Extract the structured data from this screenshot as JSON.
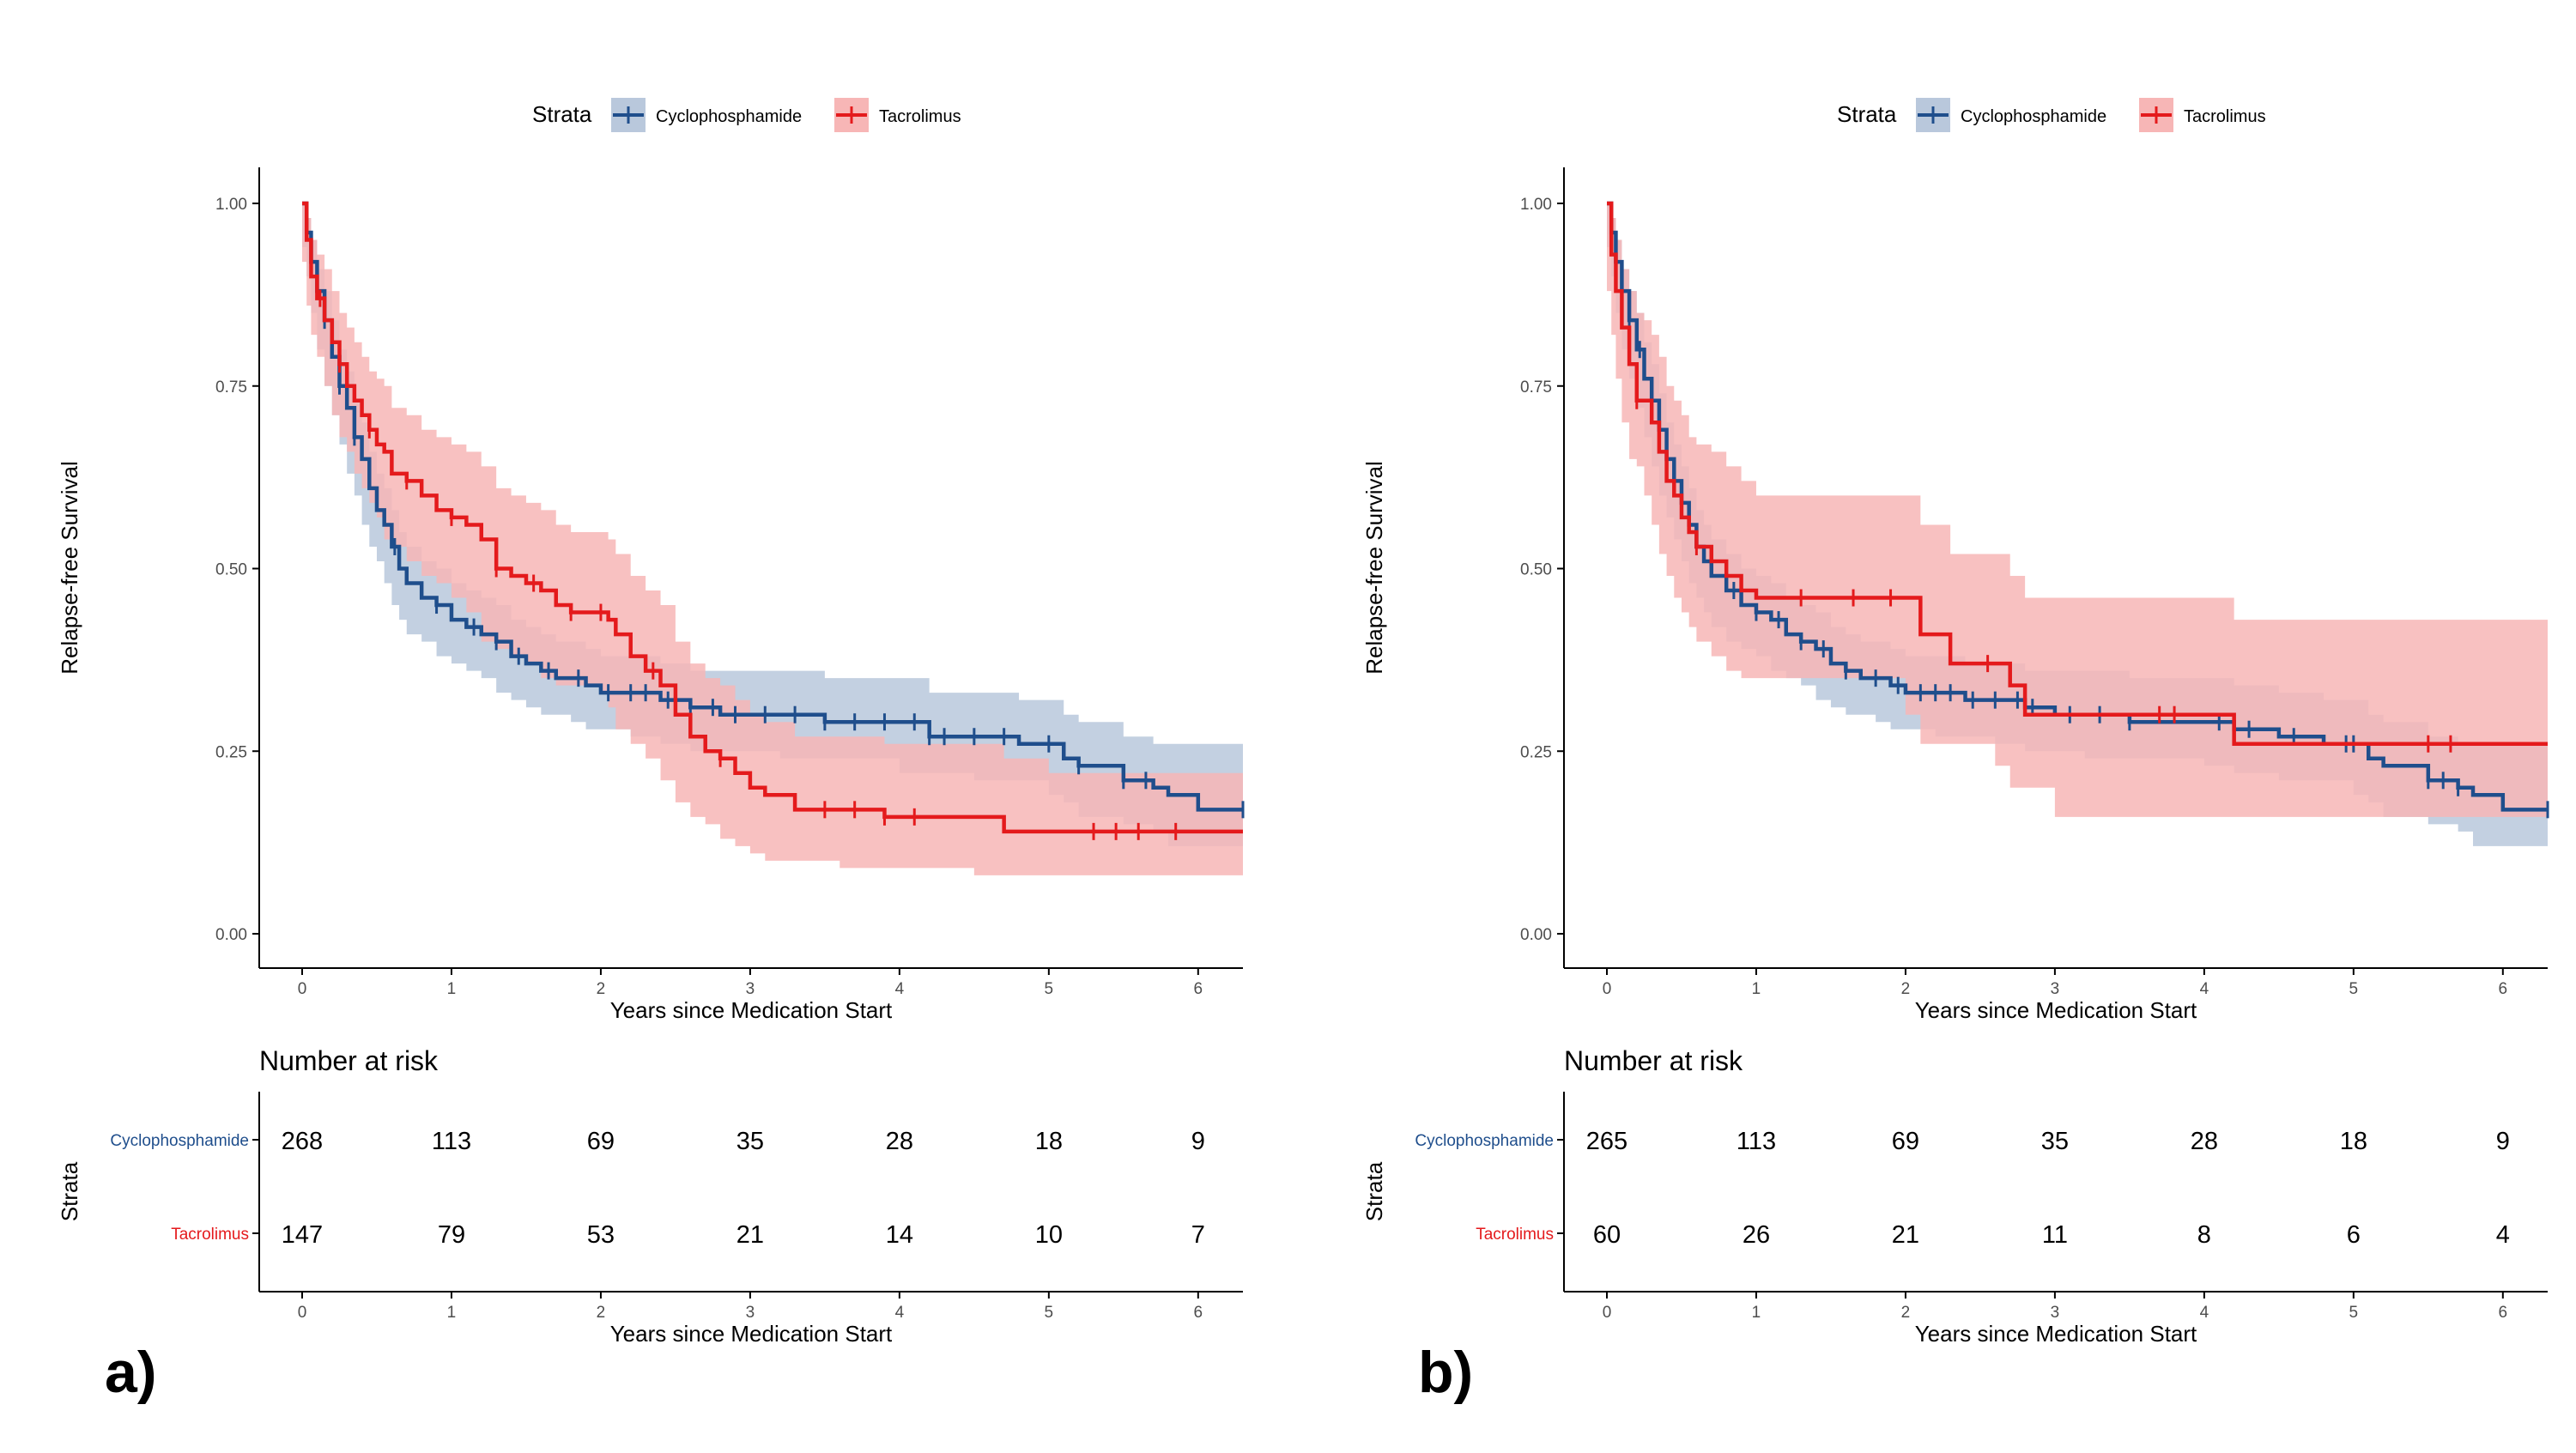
{
  "colors": {
    "cyclophosphamide": "#1F4E8C",
    "tacrolimus": "#E41A1C",
    "cyclophosphamide_band": "#B9C8DC",
    "tacrolimus_band": "#F7B6B6",
    "axis": "#000000",
    "tick_text": "#4D4D4D"
  },
  "chart_data": [
    {
      "type": "line",
      "subtype": "kaplan-meier",
      "panel_label": "a)",
      "legend": {
        "title": "Strata",
        "position": "top",
        "entries": [
          "Cyclophosphamide",
          "Tacrolimus"
        ]
      },
      "xlabel": "Years since Medication Start",
      "ylabel": "Relapse-free Survival",
      "xlim": [
        0,
        6.3
      ],
      "ylim": [
        0,
        1
      ],
      "xticks": [
        "0",
        "1",
        "2",
        "3",
        "4",
        "5",
        "6"
      ],
      "yticks": [
        "0.00",
        "0.25",
        "0.50",
        "0.75",
        "1.00"
      ],
      "grid": false,
      "series": [
        {
          "name": "Cyclophosphamide",
          "color_key": "cyclophosphamide",
          "band_key": "cyclophosphamide_band",
          "x": [
            0,
            0.03,
            0.06,
            0.1,
            0.15,
            0.2,
            0.25,
            0.3,
            0.35,
            0.4,
            0.45,
            0.5,
            0.55,
            0.6,
            0.65,
            0.7,
            0.8,
            0.9,
            1.0,
            1.1,
            1.2,
            1.3,
            1.4,
            1.5,
            1.6,
            1.7,
            1.8,
            1.9,
            2.0,
            2.2,
            2.4,
            2.6,
            2.8,
            3.0,
            3.2,
            3.5,
            3.8,
            4.0,
            4.2,
            4.5,
            4.8,
            5.0,
            5.1,
            5.2,
            5.5,
            5.7,
            5.8,
            6.0,
            6.3
          ],
          "y": [
            1.0,
            0.96,
            0.92,
            0.88,
            0.84,
            0.79,
            0.75,
            0.72,
            0.68,
            0.65,
            0.61,
            0.58,
            0.56,
            0.53,
            0.5,
            0.48,
            0.46,
            0.45,
            0.43,
            0.42,
            0.41,
            0.4,
            0.38,
            0.37,
            0.36,
            0.35,
            0.35,
            0.34,
            0.33,
            0.33,
            0.32,
            0.31,
            0.3,
            0.3,
            0.3,
            0.29,
            0.29,
            0.29,
            0.27,
            0.27,
            0.26,
            0.26,
            0.24,
            0.23,
            0.21,
            0.2,
            0.19,
            0.17,
            0.17
          ],
          "ci_lower": [
            1.0,
            0.94,
            0.9,
            0.85,
            0.8,
            0.75,
            0.71,
            0.67,
            0.63,
            0.6,
            0.56,
            0.53,
            0.51,
            0.48,
            0.45,
            0.43,
            0.41,
            0.4,
            0.38,
            0.37,
            0.36,
            0.35,
            0.33,
            0.32,
            0.31,
            0.3,
            0.3,
            0.29,
            0.28,
            0.28,
            0.27,
            0.26,
            0.25,
            0.25,
            0.25,
            0.24,
            0.24,
            0.24,
            0.22,
            0.22,
            0.21,
            0.21,
            0.19,
            0.18,
            0.16,
            0.15,
            0.14,
            0.12,
            0.12
          ],
          "ci_upper": [
            1.0,
            0.98,
            0.95,
            0.91,
            0.88,
            0.84,
            0.8,
            0.77,
            0.73,
            0.7,
            0.66,
            0.63,
            0.61,
            0.58,
            0.55,
            0.53,
            0.51,
            0.5,
            0.48,
            0.47,
            0.46,
            0.45,
            0.43,
            0.42,
            0.41,
            0.4,
            0.4,
            0.39,
            0.38,
            0.38,
            0.37,
            0.36,
            0.36,
            0.36,
            0.36,
            0.35,
            0.35,
            0.35,
            0.33,
            0.33,
            0.32,
            0.32,
            0.3,
            0.29,
            0.27,
            0.26,
            0.26,
            0.26,
            0.26
          ],
          "censor_x": [
            0.15,
            0.25,
            0.35,
            0.62,
            0.9,
            1.15,
            1.3,
            1.45,
            1.65,
            1.85,
            2.05,
            2.2,
            2.3,
            2.45,
            2.6,
            2.75,
            2.9,
            3.1,
            3.3,
            3.5,
            3.7,
            3.9,
            4.1,
            4.2,
            4.3,
            4.5,
            4.7,
            5.0,
            5.2,
            5.5,
            5.65,
            6.3
          ]
        },
        {
          "name": "Tacrolimus",
          "color_key": "tacrolimus",
          "band_key": "tacrolimus_band",
          "x": [
            0,
            0.03,
            0.06,
            0.1,
            0.15,
            0.2,
            0.25,
            0.3,
            0.35,
            0.4,
            0.45,
            0.5,
            0.55,
            0.6,
            0.7,
            0.8,
            0.9,
            1.0,
            1.1,
            1.2,
            1.3,
            1.4,
            1.5,
            1.6,
            1.7,
            1.8,
            1.9,
            2.0,
            2.05,
            2.1,
            2.2,
            2.3,
            2.4,
            2.5,
            2.6,
            2.7,
            2.8,
            2.9,
            3.0,
            3.1,
            3.3,
            3.6,
            3.9,
            4.2,
            4.5,
            4.7,
            5.0,
            5.4,
            5.8,
            6.3
          ],
          "y": [
            1.0,
            0.95,
            0.9,
            0.87,
            0.84,
            0.81,
            0.78,
            0.75,
            0.73,
            0.71,
            0.69,
            0.67,
            0.66,
            0.63,
            0.62,
            0.6,
            0.58,
            0.57,
            0.56,
            0.54,
            0.5,
            0.49,
            0.48,
            0.47,
            0.45,
            0.44,
            0.44,
            0.44,
            0.43,
            0.41,
            0.38,
            0.36,
            0.34,
            0.3,
            0.27,
            0.25,
            0.24,
            0.22,
            0.2,
            0.19,
            0.17,
            0.17,
            0.16,
            0.16,
            0.16,
            0.14,
            0.14,
            0.14,
            0.14,
            0.14
          ],
          "ci_lower": [
            1.0,
            0.92,
            0.86,
            0.82,
            0.79,
            0.75,
            0.71,
            0.68,
            0.66,
            0.63,
            0.61,
            0.59,
            0.57,
            0.54,
            0.53,
            0.51,
            0.49,
            0.48,
            0.46,
            0.44,
            0.4,
            0.39,
            0.38,
            0.37,
            0.35,
            0.34,
            0.34,
            0.34,
            0.33,
            0.31,
            0.28,
            0.26,
            0.24,
            0.21,
            0.18,
            0.16,
            0.15,
            0.13,
            0.12,
            0.11,
            0.1,
            0.1,
            0.09,
            0.09,
            0.09,
            0.08,
            0.08,
            0.08,
            0.08,
            0.08
          ],
          "ci_upper": [
            1.0,
            0.98,
            0.95,
            0.93,
            0.91,
            0.88,
            0.85,
            0.83,
            0.81,
            0.79,
            0.77,
            0.76,
            0.75,
            0.72,
            0.71,
            0.69,
            0.68,
            0.67,
            0.66,
            0.64,
            0.61,
            0.6,
            0.59,
            0.58,
            0.56,
            0.55,
            0.55,
            0.55,
            0.54,
            0.52,
            0.49,
            0.47,
            0.45,
            0.4,
            0.37,
            0.35,
            0.34,
            0.32,
            0.3,
            0.29,
            0.27,
            0.27,
            0.26,
            0.26,
            0.26,
            0.24,
            0.22,
            0.22,
            0.22,
            0.22
          ],
          "censor_x": [
            0.12,
            0.25,
            0.45,
            0.7,
            1.0,
            1.3,
            1.55,
            1.8,
            2.0,
            2.35,
            2.8,
            3.5,
            3.7,
            3.9,
            4.1,
            5.3,
            5.45,
            5.6,
            5.85
          ]
        }
      ],
      "risk_table": {
        "title": "Number at risk",
        "ylabel": "Strata",
        "xlabel": "Years since Medication Start",
        "times": [
          0,
          1,
          2,
          3,
          4,
          5,
          6
        ],
        "xticks": [
          "0",
          "1",
          "2",
          "3",
          "4",
          "5",
          "6"
        ],
        "rows": [
          {
            "name": "Cyclophosphamide",
            "color_key": "cyclophosphamide",
            "values": [
              "268",
              "113",
              "69",
              "35",
              "28",
              "18",
              "9"
            ]
          },
          {
            "name": "Tacrolimus",
            "color_key": "tacrolimus",
            "values": [
              "147",
              "79",
              "53",
              "21",
              "14",
              "10",
              "7"
            ]
          }
        ]
      }
    },
    {
      "type": "line",
      "subtype": "kaplan-meier",
      "panel_label": "b)",
      "legend": {
        "title": "Strata",
        "position": "top",
        "entries": [
          "Cyclophosphamide",
          "Tacrolimus"
        ]
      },
      "xlabel": "Years since Medication Start",
      "ylabel": "Relapse-free Survival",
      "xlim": [
        0,
        6.3
      ],
      "ylim": [
        0,
        1
      ],
      "xticks": [
        "0",
        "1",
        "2",
        "3",
        "4",
        "5",
        "6"
      ],
      "yticks": [
        "0.00",
        "0.25",
        "0.50",
        "0.75",
        "1.00"
      ],
      "grid": false,
      "series": [
        {
          "name": "Cyclophosphamide",
          "color_key": "cyclophosphamide",
          "band_key": "cyclophosphamide_band",
          "x": [
            0,
            0.03,
            0.06,
            0.1,
            0.15,
            0.2,
            0.25,
            0.3,
            0.35,
            0.4,
            0.45,
            0.5,
            0.55,
            0.6,
            0.65,
            0.7,
            0.8,
            0.9,
            1.0,
            1.1,
            1.2,
            1.3,
            1.4,
            1.5,
            1.6,
            1.7,
            1.8,
            1.9,
            2.0,
            2.2,
            2.4,
            2.6,
            2.8,
            3.0,
            3.2,
            3.5,
            3.8,
            4.0,
            4.2,
            4.5,
            4.8,
            5.0,
            5.1,
            5.2,
            5.5,
            5.7,
            5.8,
            6.0,
            6.3
          ],
          "y": [
            1.0,
            0.96,
            0.92,
            0.88,
            0.84,
            0.8,
            0.76,
            0.73,
            0.69,
            0.65,
            0.62,
            0.59,
            0.56,
            0.53,
            0.51,
            0.49,
            0.47,
            0.45,
            0.44,
            0.43,
            0.41,
            0.4,
            0.39,
            0.37,
            0.36,
            0.35,
            0.35,
            0.34,
            0.33,
            0.33,
            0.32,
            0.32,
            0.31,
            0.3,
            0.3,
            0.29,
            0.29,
            0.29,
            0.28,
            0.27,
            0.26,
            0.26,
            0.24,
            0.23,
            0.21,
            0.2,
            0.19,
            0.17,
            0.17
          ],
          "ci_lower": [
            1.0,
            0.94,
            0.9,
            0.85,
            0.8,
            0.76,
            0.72,
            0.68,
            0.64,
            0.6,
            0.57,
            0.54,
            0.51,
            0.48,
            0.46,
            0.44,
            0.42,
            0.4,
            0.39,
            0.38,
            0.36,
            0.35,
            0.34,
            0.32,
            0.31,
            0.3,
            0.3,
            0.29,
            0.28,
            0.28,
            0.27,
            0.27,
            0.26,
            0.25,
            0.25,
            0.24,
            0.24,
            0.24,
            0.23,
            0.22,
            0.21,
            0.21,
            0.19,
            0.18,
            0.16,
            0.15,
            0.14,
            0.12,
            0.12
          ],
          "ci_upper": [
            1.0,
            0.98,
            0.95,
            0.91,
            0.88,
            0.85,
            0.81,
            0.78,
            0.74,
            0.7,
            0.67,
            0.64,
            0.61,
            0.58,
            0.56,
            0.54,
            0.52,
            0.5,
            0.49,
            0.48,
            0.46,
            0.45,
            0.44,
            0.42,
            0.41,
            0.4,
            0.4,
            0.39,
            0.38,
            0.38,
            0.37,
            0.37,
            0.36,
            0.36,
            0.36,
            0.35,
            0.35,
            0.35,
            0.34,
            0.33,
            0.32,
            0.32,
            0.3,
            0.29,
            0.27,
            0.26,
            0.26,
            0.26,
            0.26
          ],
          "censor_x": [
            0.15,
            0.22,
            0.3,
            0.4,
            0.55,
            0.85,
            1.0,
            1.15,
            1.3,
            1.45,
            1.6,
            1.8,
            1.95,
            2.1,
            2.2,
            2.3,
            2.45,
            2.6,
            2.75,
            2.85,
            3.1,
            3.3,
            3.5,
            4.1,
            4.2,
            4.3,
            4.6,
            4.95,
            5.0,
            5.5,
            5.6,
            5.7,
            6.3
          ]
        },
        {
          "name": "Tacrolimus",
          "color_key": "tacrolimus",
          "band_key": "tacrolimus_band",
          "x": [
            0,
            0.03,
            0.06,
            0.1,
            0.15,
            0.2,
            0.25,
            0.3,
            0.35,
            0.4,
            0.45,
            0.5,
            0.55,
            0.6,
            0.7,
            0.8,
            0.9,
            1.0,
            1.1,
            1.2,
            1.3,
            2.0,
            2.1,
            2.3,
            2.5,
            2.6,
            2.7,
            2.8,
            3.0,
            4.2,
            6.3
          ],
          "y": [
            1.0,
            0.93,
            0.88,
            0.83,
            0.78,
            0.73,
            0.73,
            0.7,
            0.66,
            0.62,
            0.6,
            0.57,
            0.55,
            0.53,
            0.51,
            0.49,
            0.47,
            0.46,
            0.46,
            0.46,
            0.46,
            0.46,
            0.41,
            0.37,
            0.37,
            0.37,
            0.34,
            0.3,
            0.3,
            0.26,
            0.26
          ],
          "ci_lower": [
            1.0,
            0.88,
            0.82,
            0.76,
            0.7,
            0.65,
            0.64,
            0.6,
            0.56,
            0.52,
            0.49,
            0.46,
            0.44,
            0.42,
            0.4,
            0.38,
            0.36,
            0.35,
            0.35,
            0.35,
            0.35,
            0.35,
            0.3,
            0.26,
            0.26,
            0.26,
            0.23,
            0.2,
            0.2,
            0.16,
            0.16
          ],
          "ci_upper": [
            1.0,
            0.98,
            0.95,
            0.91,
            0.88,
            0.85,
            0.84,
            0.82,
            0.79,
            0.75,
            0.73,
            0.71,
            0.68,
            0.67,
            0.66,
            0.64,
            0.62,
            0.6,
            0.6,
            0.6,
            0.6,
            0.6,
            0.56,
            0.52,
            0.52,
            0.52,
            0.49,
            0.46,
            0.46,
            0.43,
            0.43
          ],
          "censor_x": [
            0.2,
            0.6,
            1.3,
            1.65,
            1.9,
            2.55,
            3.7,
            3.8,
            5.5,
            5.65
          ]
        }
      ],
      "risk_table": {
        "title": "Number at risk",
        "ylabel": "Strata",
        "xlabel": "Years since Medication Start",
        "times": [
          0,
          1,
          2,
          3,
          4,
          5,
          6
        ],
        "xticks": [
          "0",
          "1",
          "2",
          "3",
          "4",
          "5",
          "6"
        ],
        "rows": [
          {
            "name": "Cyclophosphamide",
            "color_key": "cyclophosphamide",
            "values": [
              "265",
              "113",
              "69",
              "35",
              "28",
              "18",
              "9"
            ]
          },
          {
            "name": "Tacrolimus",
            "color_key": "tacrolimus",
            "values": [
              "60",
              "26",
              "21",
              "11",
              "8",
              "6",
              "4"
            ]
          }
        ]
      }
    }
  ]
}
